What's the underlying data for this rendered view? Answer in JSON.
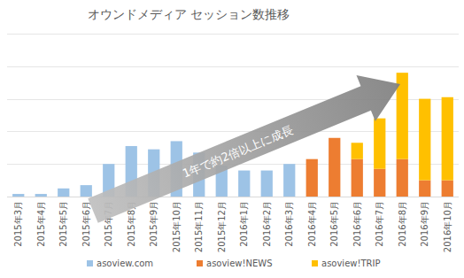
{
  "chart_data": {
    "type": "bar",
    "title": "オウンドメディア セッション数推移",
    "categories": [
      "2015年3月",
      "2015年4月",
      "2015年5月",
      "2015年6月",
      "2015年7月",
      "2015年8月",
      "2015年9月",
      "2015年10月",
      "2015年11月",
      "2015年12月",
      "2016年1月",
      "2016年2月",
      "2016年3月",
      "2016年4月",
      "2016年5月",
      "2016年6月",
      "2016年7月",
      "2016年8月",
      "2016年9月",
      "2016年10月"
    ],
    "series": [
      {
        "name": "asoview.com",
        "color": "#9dc3e6",
        "values": [
          0.08,
          0.08,
          0.25,
          0.35,
          1.0,
          1.55,
          1.45,
          1.7,
          1.35,
          0.95,
          0.8,
          0.8,
          1.0,
          null,
          null,
          null,
          null,
          null,
          null,
          null
        ]
      },
      {
        "name": "asoview!NEWS",
        "color": "#ed7d31",
        "values": [
          null,
          null,
          null,
          null,
          null,
          null,
          null,
          null,
          null,
          null,
          null,
          null,
          null,
          1.15,
          1.8,
          1.15,
          0.85,
          1.15,
          0.5,
          0.5
        ]
      },
      {
        "name": "asoview!TRIP",
        "color": "#ffc000",
        "values": [
          null,
          null,
          null,
          null,
          null,
          null,
          null,
          null,
          null,
          null,
          null,
          null,
          null,
          null,
          null,
          0.5,
          1.55,
          2.65,
          2.5,
          2.55
        ]
      }
    ],
    "ylim": [
      0,
      5
    ],
    "yticks": [
      0,
      1,
      2,
      3,
      4,
      5
    ],
    "stacked": true,
    "grid": true,
    "legend": "bottom",
    "tick_labels": "x",
    "annotation": "1年で約2倍以上に成長"
  }
}
